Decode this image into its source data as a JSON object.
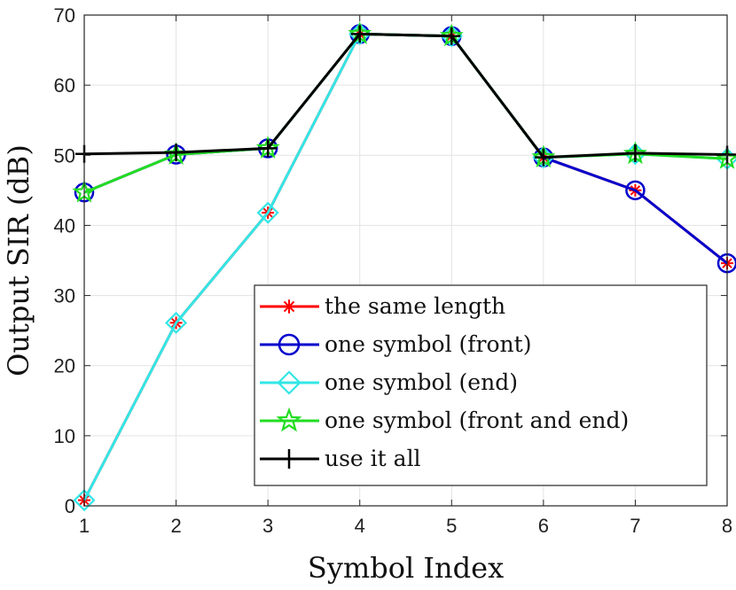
{
  "chart_data": {
    "type": "line",
    "xlabel": "Symbol Index",
    "ylabel": "Output SIR (dB)",
    "x": [
      1,
      2,
      3,
      4,
      5,
      6,
      7,
      8
    ],
    "xlim": [
      1,
      8
    ],
    "ylim": [
      0,
      70
    ],
    "xticks": [
      "1",
      "2",
      "3",
      "4",
      "5",
      "6",
      "7",
      "8"
    ],
    "yticks": [
      "0",
      "10",
      "20",
      "30",
      "40",
      "50",
      "60",
      "70"
    ],
    "grid": true,
    "legend_position": "bottom-right",
    "series": [
      {
        "name": "the same length",
        "color": "#ff0000",
        "marker": "asterisk",
        "values": [
          0.8,
          26.1,
          41.8,
          67.3,
          67.0,
          49.7,
          45.0,
          34.6
        ]
      },
      {
        "name": "one symbol (front)",
        "color": "#0000cc",
        "marker": "circle",
        "values": [
          44.7,
          50.1,
          51.0,
          67.3,
          67.0,
          49.7,
          45.0,
          34.6
        ]
      },
      {
        "name": "one symbol (end)",
        "color": "#33e6e6",
        "marker": "diamond",
        "values": [
          0.8,
          26.1,
          41.8,
          67.3,
          67.0,
          49.7,
          50.2,
          49.5
        ]
      },
      {
        "name": "one symbol (front and end)",
        "color": "#22dd22",
        "marker": "star",
        "values": [
          44.7,
          50.1,
          51.0,
          67.3,
          67.0,
          49.7,
          50.2,
          49.5
        ]
      },
      {
        "name": "use it all",
        "color": "#000000",
        "marker": "plus",
        "values": [
          50.2,
          50.4,
          51.0,
          67.3,
          67.0,
          49.7,
          50.3,
          50.1
        ]
      }
    ]
  }
}
